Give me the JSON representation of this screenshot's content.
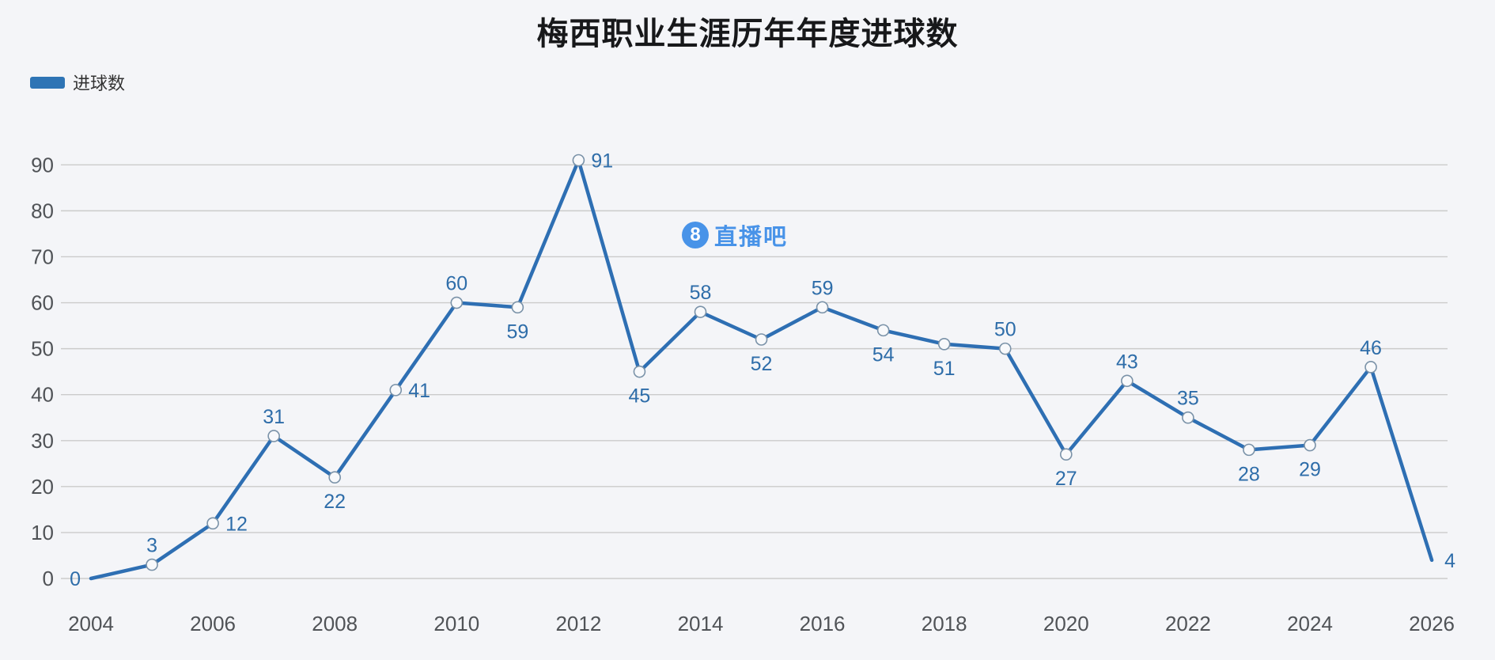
{
  "title": "梅西职业生涯历年年度进球数",
  "legend": {
    "label": "进球数",
    "swatch_color": "#2e74b5"
  },
  "watermark": {
    "icon": "circle-8-icon",
    "icon_text": "8",
    "text": "直播吧",
    "color": "#3f8ee8"
  },
  "colors": {
    "background": "#f4f5f8",
    "line": "#2e6fb3",
    "data_label": "#2e6da9",
    "marker_stroke": "#7a92a8",
    "marker_fill": "#f8f9fb",
    "grid": "#cbcbcb",
    "axis_text": "#505357"
  },
  "chart_data": {
    "type": "line",
    "title": "梅西职业生涯历年年度进球数",
    "legend_entries": [
      "进球数"
    ],
    "legend_position": "top-left",
    "grid": true,
    "x": [
      2004,
      2005,
      2006,
      2007,
      2008,
      2009,
      2010,
      2011,
      2012,
      2013,
      2014,
      2015,
      2016,
      2017,
      2018,
      2019,
      2020,
      2021,
      2022,
      2023,
      2024,
      2025,
      2026
    ],
    "series": [
      {
        "name": "进球数",
        "values": [
          0,
          3,
          12,
          31,
          22,
          41,
          60,
          59,
          91,
          45,
          58,
          52,
          59,
          54,
          51,
          50,
          27,
          43,
          35,
          28,
          29,
          46,
          4
        ]
      }
    ],
    "label_positions": [
      "left",
      "above",
      "right",
      "above",
      "below",
      "right",
      "above",
      "below",
      "right",
      "below",
      "above",
      "below",
      "above",
      "below",
      "below",
      "above",
      "below",
      "above",
      "above",
      "below",
      "below",
      "above",
      "right"
    ],
    "xlabel": "",
    "ylabel": "",
    "xtick_labels": [
      "2004",
      "2006",
      "2008",
      "2010",
      "2012",
      "2014",
      "2016",
      "2018",
      "2020",
      "2022",
      "2024",
      "2026"
    ],
    "ytick_labels": [
      "0",
      "10",
      "20",
      "30",
      "40",
      "50",
      "60",
      "70",
      "80",
      "90"
    ],
    "ylim": [
      0,
      90
    ],
    "ytick_step": 10
  }
}
